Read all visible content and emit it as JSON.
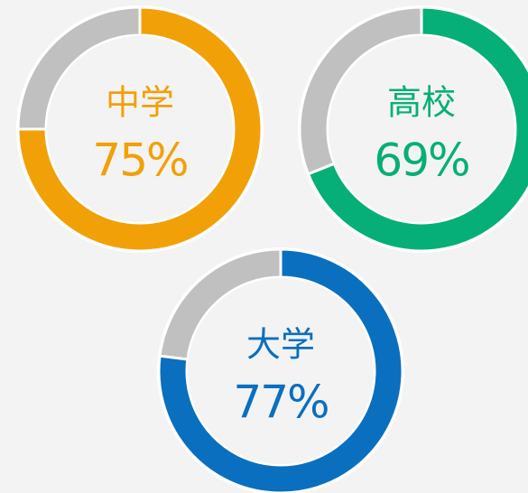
{
  "chart_data": [
    {
      "type": "donut",
      "title": "中学",
      "values": [
        75,
        25
      ],
      "value_labels": [
        "75%",
        null
      ],
      "colors": [
        "#f2a007",
        "#c0c0c0"
      ]
    },
    {
      "type": "donut",
      "title": "高校",
      "values": [
        69,
        31
      ],
      "value_labels": [
        "69%",
        null
      ],
      "colors": [
        "#06af78",
        "#c0c0c0"
      ]
    },
    {
      "type": "donut",
      "title": "大学",
      "values": [
        77,
        23
      ],
      "value_labels": [
        "77%",
        null
      ],
      "colors": [
        "#0a6fbf",
        "#c0c0c0"
      ]
    }
  ]
}
